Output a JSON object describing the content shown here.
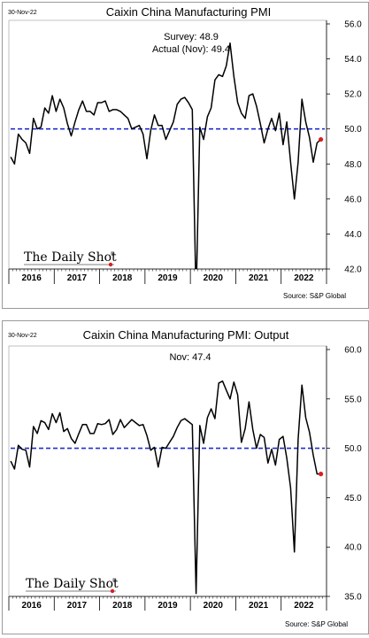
{
  "colors": {
    "series_line": "#000000",
    "threshold_line": "#1f2ecf",
    "last_point": "#d62020",
    "frame_border": "#9a9a9a"
  },
  "brand": {
    "logo_text": "The Daily Shot",
    "logo_mark": "®"
  },
  "chart_data": [
    {
      "type": "line",
      "date_label": "30-Nov-22",
      "title": "Caixin China Manufacturing PMI",
      "annotations": [
        "Survey:  48.9",
        "Actual (Nov):  49.4"
      ],
      "source": "Source: S&P Global",
      "ylim": [
        42.0,
        56.0
      ],
      "yticks": [
        "42.0",
        "44.0",
        "46.0",
        "48.0",
        "50.0",
        "52.0",
        "54.0",
        "56.0"
      ],
      "year_labels": [
        "2016",
        "2017",
        "2018",
        "2019",
        "2020",
        "2021",
        "2022"
      ],
      "x_start": "2016-01",
      "x_end": "2022-11",
      "threshold": 50.0,
      "highlight_last_point": true,
      "series": [
        {
          "values": [
            48.4,
            48.0,
            49.7,
            49.4,
            49.2,
            48.6,
            50.6,
            50.0,
            50.1,
            51.2,
            50.9,
            51.9,
            51.0,
            51.7,
            51.2,
            50.3,
            49.6,
            50.4,
            51.1,
            51.6,
            51.0,
            51.0,
            50.8,
            51.5,
            51.5,
            51.6,
            51.0,
            51.1,
            51.1,
            51.0,
            50.8,
            50.6,
            50.0,
            50.1,
            50.2,
            49.7,
            48.3,
            49.9,
            50.8,
            50.2,
            50.2,
            49.4,
            49.9,
            50.4,
            51.4,
            51.7,
            51.8,
            51.5,
            51.1,
            40.3,
            50.1,
            49.4,
            50.7,
            51.2,
            52.8,
            53.1,
            53.0,
            53.6,
            54.9,
            53.0,
            51.5,
            50.9,
            50.6,
            51.9,
            52.0,
            51.3,
            50.3,
            49.2,
            50.0,
            50.6,
            49.9,
            50.9,
            49.1,
            50.4,
            48.1,
            46.0,
            48.1,
            51.7,
            50.4,
            49.5,
            48.1,
            49.2,
            49.4
          ]
        }
      ]
    },
    {
      "type": "line",
      "date_label": "30-Nov-22",
      "title": "Caixin China Manufacturing PMI: Output",
      "annotations": [
        "Nov:    47.4"
      ],
      "source": "Source: S&P Global",
      "ylim": [
        35.0,
        60.0
      ],
      "yticks": [
        "35.0",
        "40.0",
        "45.0",
        "50.0",
        "55.0",
        "60.0"
      ],
      "year_labels": [
        "2016",
        "2017",
        "2018",
        "2019",
        "2020",
        "2021",
        "2022"
      ],
      "x_start": "2016-01",
      "x_end": "2022-11",
      "threshold": 50.0,
      "highlight_last_point": true,
      "series": [
        {
          "values": [
            48.7,
            47.9,
            50.3,
            49.9,
            49.8,
            48.1,
            52.2,
            51.5,
            52.8,
            52.6,
            51.9,
            53.5,
            52.6,
            53.6,
            51.7,
            52.0,
            51.0,
            50.5,
            51.5,
            52.4,
            52.4,
            51.5,
            51.5,
            52.5,
            52.4,
            52.5,
            52.9,
            51.4,
            51.9,
            52.9,
            52.1,
            52.5,
            52.9,
            52.6,
            52.3,
            52.4,
            51.3,
            49.8,
            50.1,
            48.1,
            50.1,
            50.0,
            50.6,
            51.2,
            52.1,
            52.8,
            53.0,
            52.7,
            52.4,
            35.3,
            52.3,
            50.5,
            53.1,
            54.0,
            53.0,
            56.6,
            56.8,
            55.9,
            55.0,
            56.7,
            55.4,
            50.6,
            52.0,
            54.7,
            51.9,
            50.0,
            51.4,
            51.1,
            48.5,
            49.9,
            48.3,
            50.9,
            51.2,
            49.0,
            46.0,
            39.5,
            50.9,
            56.4,
            53.1,
            51.6,
            49.3,
            47.4,
            47.4
          ]
        }
      ]
    }
  ]
}
